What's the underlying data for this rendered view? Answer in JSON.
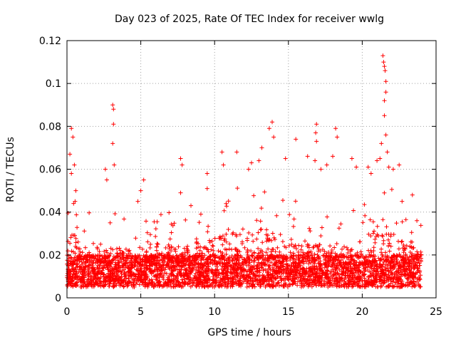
{
  "chart_data": {
    "type": "scatter",
    "title": "Day 023 of 2025, Rate Of TEC Index for receiver wwlg",
    "xlabel": "GPS time / hours",
    "ylabel": "ROTI / TECUs",
    "xlim": [
      0,
      25
    ],
    "ylim": [
      0,
      0.12
    ],
    "x_ticks": [
      "0",
      "5",
      "10",
      "15",
      "20",
      "25"
    ],
    "y_ticks": [
      "0",
      "0.02",
      "0.04",
      "0.06",
      "0.08",
      "0.1",
      "0.12"
    ],
    "grid": true,
    "marker": "+",
    "color": "#ff0000",
    "x_range_data": [
      0,
      24
    ],
    "baseline_band": [
      0.005,
      0.03
    ],
    "notable_points": [
      {
        "x": 0.2,
        "y": 0.067
      },
      {
        "x": 0.3,
        "y": 0.079
      },
      {
        "x": 0.4,
        "y": 0.075
      },
      {
        "x": 0.5,
        "y": 0.062
      },
      {
        "x": 0.3,
        "y": 0.058
      },
      {
        "x": 0.6,
        "y": 0.05
      },
      {
        "x": 0.45,
        "y": 0.044
      },
      {
        "x": 0.55,
        "y": 0.045
      },
      {
        "x": 2.6,
        "y": 0.06
      },
      {
        "x": 2.7,
        "y": 0.055
      },
      {
        "x": 3.1,
        "y": 0.09
      },
      {
        "x": 3.15,
        "y": 0.088
      },
      {
        "x": 3.15,
        "y": 0.081
      },
      {
        "x": 3.1,
        "y": 0.072
      },
      {
        "x": 3.2,
        "y": 0.062
      },
      {
        "x": 5.2,
        "y": 0.055
      },
      {
        "x": 5.0,
        "y": 0.05
      },
      {
        "x": 4.8,
        "y": 0.045
      },
      {
        "x": 7.7,
        "y": 0.065
      },
      {
        "x": 7.8,
        "y": 0.062
      },
      {
        "x": 7.7,
        "y": 0.049
      },
      {
        "x": 8.4,
        "y": 0.043
      },
      {
        "x": 9.5,
        "y": 0.058
      },
      {
        "x": 9.5,
        "y": 0.051
      },
      {
        "x": 10.5,
        "y": 0.068
      },
      {
        "x": 10.6,
        "y": 0.062
      },
      {
        "x": 11.5,
        "y": 0.068
      },
      {
        "x": 12.5,
        "y": 0.063
      },
      {
        "x": 12.3,
        "y": 0.06
      },
      {
        "x": 13.0,
        "y": 0.064
      },
      {
        "x": 13.2,
        "y": 0.07
      },
      {
        "x": 13.7,
        "y": 0.079
      },
      {
        "x": 13.9,
        "y": 0.082
      },
      {
        "x": 14.0,
        "y": 0.075
      },
      {
        "x": 14.8,
        "y": 0.065
      },
      {
        "x": 15.5,
        "y": 0.074
      },
      {
        "x": 16.3,
        "y": 0.066
      },
      {
        "x": 16.9,
        "y": 0.081
      },
      {
        "x": 16.85,
        "y": 0.077
      },
      {
        "x": 16.9,
        "y": 0.073
      },
      {
        "x": 16.8,
        "y": 0.064
      },
      {
        "x": 17.2,
        "y": 0.06
      },
      {
        "x": 17.6,
        "y": 0.062
      },
      {
        "x": 18.2,
        "y": 0.079
      },
      {
        "x": 18.3,
        "y": 0.075
      },
      {
        "x": 18.0,
        "y": 0.066
      },
      {
        "x": 19.6,
        "y": 0.061
      },
      {
        "x": 19.3,
        "y": 0.065
      },
      {
        "x": 20.4,
        "y": 0.061
      },
      {
        "x": 20.6,
        "y": 0.058
      },
      {
        "x": 21.4,
        "y": 0.113
      },
      {
        "x": 21.45,
        "y": 0.11
      },
      {
        "x": 21.5,
        "y": 0.108
      },
      {
        "x": 21.55,
        "y": 0.106
      },
      {
        "x": 21.6,
        "y": 0.101
      },
      {
        "x": 21.5,
        "y": 0.092
      },
      {
        "x": 21.6,
        "y": 0.096
      },
      {
        "x": 21.5,
        "y": 0.085
      },
      {
        "x": 21.6,
        "y": 0.076
      },
      {
        "x": 21.7,
        "y": 0.068
      },
      {
        "x": 21.3,
        "y": 0.072
      },
      {
        "x": 21.2,
        "y": 0.065
      },
      {
        "x": 21.0,
        "y": 0.064
      },
      {
        "x": 21.8,
        "y": 0.061
      },
      {
        "x": 22.1,
        "y": 0.06
      },
      {
        "x": 22.5,
        "y": 0.062
      },
      {
        "x": 22.7,
        "y": 0.045
      },
      {
        "x": 23.4,
        "y": 0.048
      },
      {
        "x": 23.7,
        "y": 0.036
      }
    ]
  }
}
